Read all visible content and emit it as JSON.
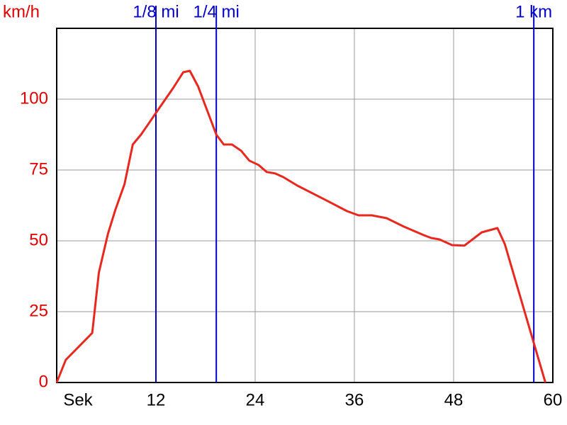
{
  "chart_data": {
    "type": "line",
    "y_label": "km/h",
    "x": [
      0,
      1.1,
      4.3,
      5.1,
      6.2,
      7.1,
      8.2,
      9.2,
      10.2,
      11.1,
      12.2,
      14.1,
      15.3,
      16.1,
      17.1,
      19.3,
      20.2,
      21.2,
      22.3,
      23.3,
      24.4,
      25.4,
      26.4,
      27.4,
      29.1,
      32.6,
      35.1,
      36.5,
      38.1,
      39.9,
      42,
      44.4,
      45.3,
      46.3,
      47.8,
      49.3,
      51.4,
      53.3,
      54.2,
      59.1
    ],
    "series": [
      {
        "color": "#e8281e",
        "values": [
          0,
          8,
          17.5,
          38.8,
          52.5,
          61,
          70,
          84,
          87.5,
          91.3,
          96,
          104,
          109.5,
          110,
          104.5,
          87.5,
          84,
          84,
          81.8,
          78.3,
          76.8,
          74.3,
          73.8,
          72.5,
          69.5,
          64.3,
          60.5,
          59,
          59,
          58,
          55,
          52,
          51,
          50.5,
          48.5,
          48.3,
          53,
          54.5,
          48.8,
          0
        ]
      }
    ],
    "xlim": [
      0,
      60
    ],
    "xticks": [
      {
        "value": 0,
        "label": "Sek"
      },
      12,
      24,
      36,
      48,
      60
    ],
    "ylim": [
      0,
      125
    ],
    "yticks": [
      0,
      25,
      50,
      75,
      100
    ],
    "grid": true,
    "tick_color": "#e00000",
    "markers": [
      {
        "label": "1/8 mi",
        "x": 12
      },
      {
        "label": "1/4 mi",
        "x": 19.3
      },
      {
        "label": "1 km",
        "x": 57.7
      }
    ],
    "marker_color": "#0000cc"
  }
}
